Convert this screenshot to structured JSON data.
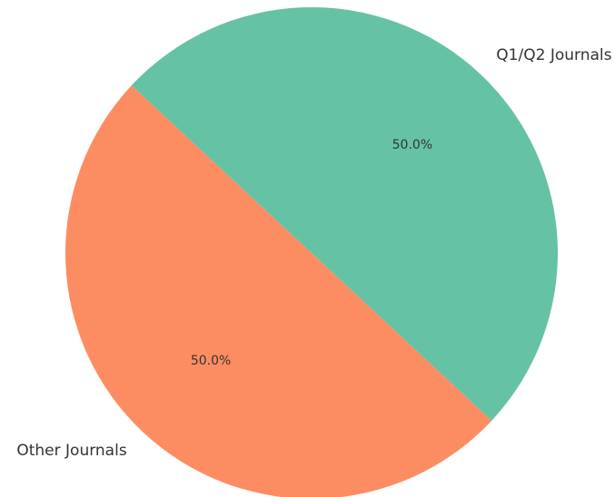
{
  "chart_data": {
    "type": "pie",
    "categories": [
      "Other Journals",
      "Q1/Q2 Journals"
    ],
    "values": [
      50.0,
      50.0
    ],
    "percent_labels": [
      "50.0%",
      "50.0%"
    ],
    "colors": [
      "#fc8d62",
      "#66c2a5"
    ],
    "title": "",
    "legend": "none"
  }
}
